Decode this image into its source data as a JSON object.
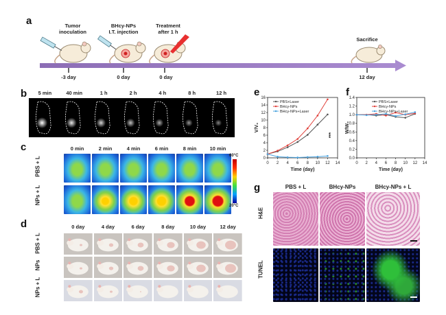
{
  "panel_a": {
    "letter": "a",
    "events": [
      {
        "top": "Tumor",
        "top2": "inoculation",
        "bottom": "-3 day"
      },
      {
        "top": "BHcy-NPs",
        "top2": "I.T. injection",
        "bottom": "0 day"
      },
      {
        "top": "Treatment",
        "top2": "after 1 h",
        "bottom": "0 day"
      },
      {
        "top": "Sacrifice",
        "top2": "",
        "bottom": "12 day"
      }
    ]
  },
  "panel_b": {
    "letter": "b",
    "times": [
      "5 min",
      "40 min",
      "1 h",
      "2 h",
      "4 h",
      "8 h",
      "12 h"
    ]
  },
  "panel_c": {
    "letter": "c",
    "times": [
      "0 min",
      "2 min",
      "4 min",
      "6 min",
      "8 min",
      "10 min"
    ],
    "rows": [
      "PBS + L",
      "NPs + L"
    ],
    "scale_max": "60°C",
    "scale_min": "20°C"
  },
  "panel_d": {
    "letter": "d",
    "days": [
      "0 day",
      "4 day",
      "6 day",
      "8 day",
      "10 day",
      "12 day"
    ],
    "rows": [
      "PBS + L",
      "NPs",
      "NPs + L"
    ]
  },
  "panel_e": {
    "letter": "e"
  },
  "panel_f": {
    "letter": "f"
  },
  "panel_g": {
    "letter": "g",
    "cols": [
      "PBS + L",
      "BHcy-NPs",
      "BHcy-NPs + L"
    ],
    "rows": [
      "H&E",
      "TUNEL"
    ]
  },
  "chart_data": [
    {
      "type": "line",
      "panel": "e",
      "xlabel": "Time (day)",
      "ylabel": "V/V₀",
      "xlim": [
        0,
        14
      ],
      "ylim": [
        0,
        16
      ],
      "xticks": [
        0,
        2,
        4,
        6,
        8,
        10,
        12,
        14
      ],
      "yticks": [
        0,
        2,
        4,
        6,
        8,
        10,
        12,
        14,
        16
      ],
      "x": [
        0,
        2,
        4,
        6,
        8,
        10,
        12
      ],
      "series": [
        {
          "name": "PBS+Laser",
          "color": "#555555",
          "values": [
            1,
            1.7,
            2.8,
            4.2,
            6.1,
            8.8,
            11.5
          ]
        },
        {
          "name": "BHcy-NPs",
          "color": "#e0403a",
          "values": [
            1,
            1.9,
            3.3,
            5.0,
            7.8,
            11.2,
            15.5
          ]
        },
        {
          "name": "BHcy-NPs+Laser",
          "color": "#4aa3df",
          "values": [
            1,
            0.3,
            0.15,
            0.1,
            0.2,
            0.3,
            0.5
          ]
        }
      ],
      "annotation": "***"
    },
    {
      "type": "line",
      "panel": "f",
      "xlabel": "Time (day)",
      "ylabel": "W/W₀",
      "xlim": [
        0,
        14
      ],
      "ylim": [
        0,
        1.4
      ],
      "xticks": [
        0,
        2,
        4,
        6,
        8,
        10,
        12,
        14
      ],
      "yticks": [
        0,
        0.2,
        0.4,
        0.6,
        0.8,
        1.0,
        1.2,
        1.4
      ],
      "x": [
        0,
        2,
        4,
        6,
        8,
        10,
        12
      ],
      "series": [
        {
          "name": "PBS+Laser",
          "color": "#555555",
          "values": [
            1,
            1.0,
            0.98,
            1.0,
            0.95,
            0.93,
            1.02
          ]
        },
        {
          "name": "BHcy-NPs",
          "color": "#e0403a",
          "values": [
            1,
            1.0,
            1.02,
            0.98,
            1.05,
            1.0,
            1.03
          ]
        },
        {
          "name": "BHcy-NPs+Laser",
          "color": "#4aa3df",
          "values": [
            1,
            0.99,
            1.0,
            1.02,
            0.97,
            1.01,
            1.06
          ]
        }
      ]
    }
  ]
}
